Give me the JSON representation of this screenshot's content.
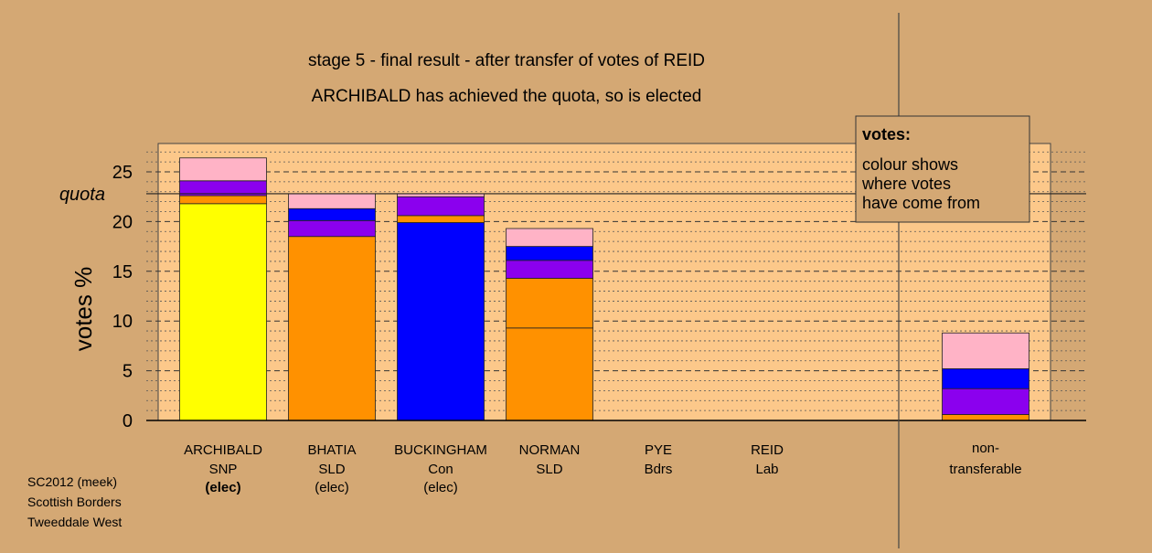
{
  "chart_data": {
    "type": "bar",
    "stacked": true,
    "title": "stage 5 - final result - after transfer of votes of REID",
    "subtitle": "ARCHIBALD has achieved the quota, so is elected",
    "ylabel": "votes %",
    "ylim": [
      0,
      27.5
    ],
    "yticks": [
      "0",
      "5",
      "10",
      "15",
      "20",
      "25"
    ],
    "quota_label": "quota",
    "quota_value": 22.8,
    "grid": true,
    "legend": {
      "title": "votes:",
      "lines": [
        "colour shows",
        "where votes",
        "have come from"
      ],
      "placement": "top-right"
    },
    "candidates": [
      {
        "name": "ARCHIBALD",
        "party": "SNP",
        "status": "(elec)",
        "status_bold": true,
        "segments": [
          {
            "color": "#ffff00",
            "value": 21.8
          },
          {
            "color": "#ff9100",
            "value": 0.8
          },
          {
            "color": "#8b00ee",
            "value": 1.5
          },
          {
            "color": "#ffb3c6",
            "value": 2.3
          }
        ]
      },
      {
        "name": "BHATIA",
        "party": "SLD",
        "status": "(elec)",
        "status_bold": false,
        "segments": [
          {
            "color": "#ff9100",
            "value": 18.5
          },
          {
            "color": "#8b00ee",
            "value": 1.6
          },
          {
            "color": "#0000ff",
            "value": 1.2
          },
          {
            "color": "#ffb3c6",
            "value": 1.5
          }
        ]
      },
      {
        "name": "BUCKINGHAM",
        "party": "Con",
        "status": "(elec)",
        "status_bold": false,
        "segments": [
          {
            "color": "#0000ff",
            "value": 19.9
          },
          {
            "color": "#ff9100",
            "value": 0.7
          },
          {
            "color": "#8b00ee",
            "value": 1.9
          },
          {
            "color": "#ffb3c6",
            "value": 0.3
          }
        ]
      },
      {
        "name": "NORMAN",
        "party": "SLD",
        "status": "",
        "status_bold": false,
        "segments": [
          {
            "color": "#ff9100",
            "value": 9.3
          },
          {
            "color": "#ff9100",
            "value": 5.0
          },
          {
            "color": "#8b00ee",
            "value": 1.8
          },
          {
            "color": "#0000ff",
            "value": 1.4
          },
          {
            "color": "#ffb3c6",
            "value": 1.8
          }
        ]
      },
      {
        "name": "PYE",
        "party": "Bdrs",
        "status": "",
        "status_bold": false,
        "segments": []
      },
      {
        "name": "REID",
        "party": "Lab",
        "status": "",
        "status_bold": false,
        "segments": []
      }
    ],
    "non_transferable": {
      "label_line1": "non-",
      "label_line2": "transferable",
      "segments": [
        {
          "color": "#ff9100",
          "value": 0.6
        },
        {
          "color": "#8b00ee",
          "value": 2.6
        },
        {
          "color": "#0000ff",
          "value": 2.0
        },
        {
          "color": "#ffb3c6",
          "value": 3.6
        }
      ]
    }
  },
  "colors": {
    "background": "#d4a874",
    "plot_background": "#fcc88a"
  },
  "footer": {
    "line1": "SC2012 (meek)",
    "line2": "Scottish Borders",
    "line3": "Tweeddale West"
  }
}
